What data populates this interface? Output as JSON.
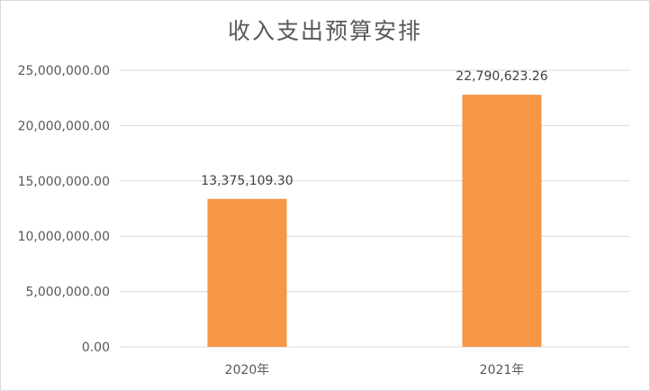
{
  "chart_data": {
    "type": "bar",
    "title": "收入支出预算安排",
    "categories": [
      "2020年",
      "2021年"
    ],
    "values": [
      13375109.3,
      22790623.26
    ],
    "data_labels": [
      "13,375,109.30",
      "22,790,623.26"
    ],
    "ylim": [
      0,
      25000000
    ],
    "yticks": [
      "0.00",
      "5,000,000.00",
      "10,000,000.00",
      "15,000,000.00",
      "20,000,000.00",
      "25,000,000.00"
    ],
    "ytick_values": [
      0,
      5000000,
      10000000,
      15000000,
      20000000,
      25000000
    ],
    "grid": true,
    "legend": "none",
    "bar_color": "#F79646",
    "grid_color": "#d9d9d9"
  }
}
